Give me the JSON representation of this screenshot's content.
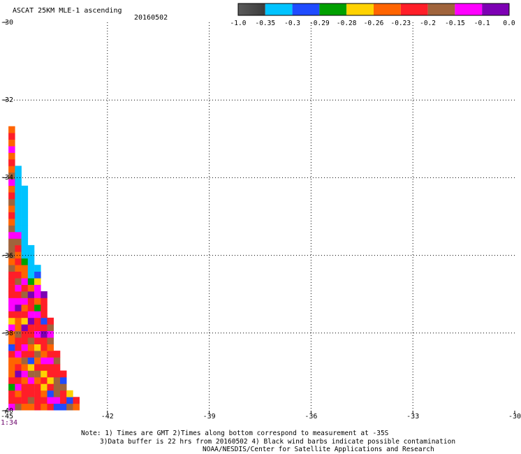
{
  "header": {
    "title": "ASCAT 25KM MLE-1 ascending",
    "date": "20160502"
  },
  "colorbar": {
    "colors": [
      "#4b4b4b",
      "#00c3ff",
      "#1f4bff",
      "#00a000",
      "#ffd200",
      "#ff6400",
      "#ff1e28",
      "#a0643c",
      "#ff00ff",
      "#7d00b4"
    ],
    "tick_labels": [
      "-1.0",
      "-0.35",
      "-0.3",
      "-0.29",
      "-0.28",
      "-0.26",
      "-0.23",
      "-0.2",
      "-0.15",
      "-0.1",
      "0.0"
    ]
  },
  "chart_data": {
    "type": "heatmap",
    "title": "ASCAT 25KM MLE-1 ascending",
    "xlim": [
      -45,
      -30
    ],
    "ylim": [
      -40,
      -30
    ],
    "x_ticks": [
      -45,
      -42,
      -39,
      -36,
      -33,
      -30
    ],
    "y_ticks": [
      -30,
      -32,
      -34,
      -36,
      -38,
      -40
    ],
    "x_tick_labels": [
      "-45",
      "-42",
      "-39",
      "-36",
      "-33",
      "-30"
    ],
    "y_tick_labels": [
      "-30",
      "-32",
      "-34",
      "-36",
      "-38",
      "-40"
    ],
    "corner_time_label": "1:34",
    "grid": "dotted",
    "cell_lon": -44.82,
    "cell_lat_base": -39.9,
    "cell_step_lon": 0.19,
    "cell_step_lat": 0.17,
    "palette": [
      "#4b4b4b",
      "#00c3ff",
      "#1f4bff",
      "#00a000",
      "#ffd200",
      "#ff6400",
      "#ff1e28",
      "#a0643c",
      "#ff00ff",
      "#7d00b4"
    ],
    "columns": [
      "8663655562558468866667577787565765875658565",
      "7658696586675569868765656781111111111",
      "5666585768669465876855311111111111",
      "5766874265766986695311111",
      "6666576574686683588421",
      "565464685669626669",
      "68264668657876",
      "287776676",
      "266726",
      "724",
      "56"
    ]
  },
  "notes": {
    "line1": "Note: 1) Times are GMT 2)Times along bottom correspond to measurement at -35S",
    "line2": "3)Data buffer is 22 hrs from 20160502 4) Black wind barbs indicate possible contamination",
    "line3": "NOAA/NESDIS/Center for Satellite Applications and Research"
  }
}
